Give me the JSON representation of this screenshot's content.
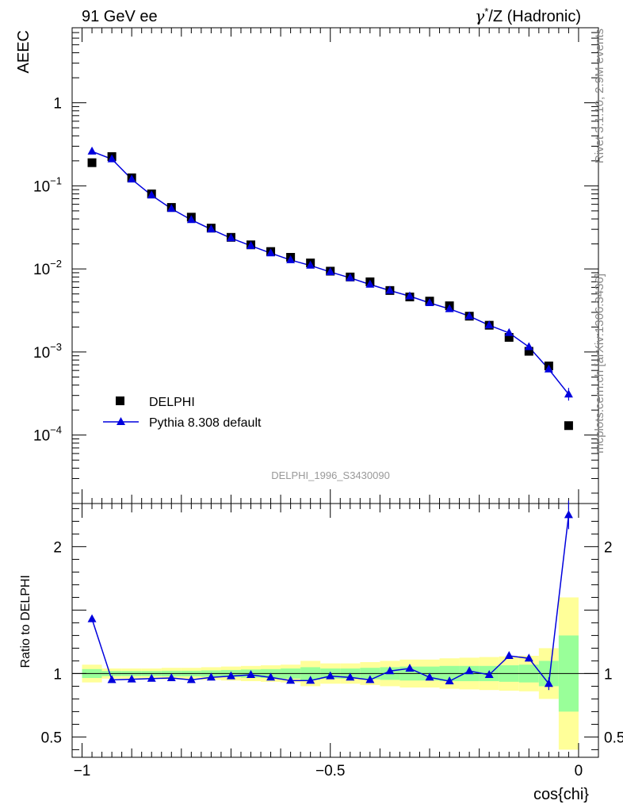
{
  "header": {
    "left": "91 GeV ee",
    "right_prefix": "γ",
    "right_sup": "*",
    "right_suffix": "/Z (Hadronic)"
  },
  "side_labels": {
    "version": "Rivet 3.1.10,  2.9M events",
    "source": "mcplots.cern.ch [arXiv:1306.3436]"
  },
  "watermark": "DELPHI_1996_S3430090",
  "colors": {
    "data": "#000000",
    "mc": "#0000dd",
    "band_inner": "#99ff99",
    "band_outer": "#ffff99"
  },
  "chart_data": [
    {
      "type": "scatter",
      "panel": "main",
      "ylabel": "AEEC",
      "yscale": "log",
      "ylim": [
        1.5e-05,
        8
      ],
      "xlim": [
        -1.02,
        0.04
      ],
      "y_ticks": [
        {
          "value": 1,
          "label": "1",
          "exp": ""
        },
        {
          "value": 0.1,
          "label": "10",
          "exp": "−1"
        },
        {
          "value": 0.01,
          "label": "10",
          "exp": "−2"
        },
        {
          "value": 0.001,
          "label": "10",
          "exp": "−3"
        },
        {
          "value": 0.0001,
          "label": "10",
          "exp": "−4"
        }
      ],
      "legend": {
        "position": "bottom-left"
      },
      "series": [
        {
          "name": "DELPHI",
          "marker": "square",
          "x": [
            -0.98,
            -0.94,
            -0.9,
            -0.86,
            -0.82,
            -0.78,
            -0.74,
            -0.7,
            -0.66,
            -0.62,
            -0.58,
            -0.54,
            -0.5,
            -0.46,
            -0.42,
            -0.38,
            -0.34,
            -0.3,
            -0.26,
            -0.22,
            -0.18,
            -0.14,
            -0.1,
            -0.06,
            -0.02
          ],
          "y": [
            0.19,
            0.225,
            0.125,
            0.08,
            0.055,
            0.042,
            0.031,
            0.024,
            0.0195,
            0.0162,
            0.0138,
            0.0118,
            0.0094,
            0.008,
            0.007,
            0.0055,
            0.0046,
            0.0041,
            0.0036,
            0.0027,
            0.0021,
            0.0015,
            0.00102,
            0.00068,
            0.00013
          ]
        },
        {
          "name": "Pythia 8.308 default",
          "marker": "triangle",
          "line": true,
          "x": [
            -0.98,
            -0.94,
            -0.9,
            -0.86,
            -0.82,
            -0.78,
            -0.74,
            -0.7,
            -0.66,
            -0.62,
            -0.58,
            -0.54,
            -0.5,
            -0.46,
            -0.42,
            -0.38,
            -0.34,
            -0.3,
            -0.26,
            -0.22,
            -0.18,
            -0.14,
            -0.1,
            -0.06,
            -0.02
          ],
          "y": [
            0.26,
            0.21,
            0.12,
            0.077,
            0.053,
            0.039,
            0.03,
            0.0235,
            0.019,
            0.0155,
            0.0128,
            0.011,
            0.0092,
            0.0078,
            0.0065,
            0.0055,
            0.0047,
            0.0039,
            0.0033,
            0.0027,
            0.0021,
            0.0017,
            0.00115,
            0.00062,
            0.00031
          ]
        }
      ]
    },
    {
      "type": "line",
      "panel": "ratio",
      "ylabel": "Ratio to DELPHI",
      "xlabel": "cos{chi}",
      "ylim": [
        0.34,
        2.34
      ],
      "xlim": [
        -1.02,
        0.04
      ],
      "y_ticks": [
        {
          "value": 0.5,
          "label": "0.5"
        },
        {
          "value": 1,
          "label": "1"
        },
        {
          "value": 2,
          "label": "2"
        }
      ],
      "x_ticks": [
        {
          "value": -1,
          "label": "−1"
        },
        {
          "value": -0.5,
          "label": "−0.5"
        },
        {
          "value": 0,
          "label": "0"
        }
      ],
      "reference_line": 1,
      "bands": {
        "x_edges": [
          -1.0,
          -0.96,
          -0.92,
          -0.88,
          -0.84,
          -0.8,
          -0.76,
          -0.72,
          -0.68,
          -0.64,
          -0.6,
          -0.56,
          -0.52,
          -0.48,
          -0.44,
          -0.4,
          -0.36,
          -0.32,
          -0.28,
          -0.24,
          -0.2,
          -0.16,
          -0.12,
          -0.08,
          -0.04,
          0.0
        ],
        "inner_half_width": [
          0.035,
          0.02,
          0.02,
          0.02,
          0.022,
          0.022,
          0.025,
          0.028,
          0.032,
          0.035,
          0.04,
          0.05,
          0.04,
          0.04,
          0.045,
          0.05,
          0.055,
          0.055,
          0.06,
          0.06,
          0.06,
          0.065,
          0.07,
          0.1,
          0.3
        ],
        "outer_half_width": [
          0.07,
          0.04,
          0.04,
          0.04,
          0.045,
          0.045,
          0.05,
          0.055,
          0.06,
          0.065,
          0.07,
          0.1,
          0.08,
          0.08,
          0.09,
          0.1,
          0.11,
          0.11,
          0.12,
          0.125,
          0.13,
          0.135,
          0.14,
          0.2,
          0.6
        ]
      },
      "series": [
        {
          "name": "Pythia 8.308 default",
          "x": [
            -0.98,
            -0.94,
            -0.9,
            -0.86,
            -0.82,
            -0.78,
            -0.74,
            -0.7,
            -0.66,
            -0.62,
            -0.58,
            -0.54,
            -0.5,
            -0.46,
            -0.42,
            -0.38,
            -0.34,
            -0.3,
            -0.26,
            -0.22,
            -0.18,
            -0.14,
            -0.1,
            -0.06,
            -0.02
          ],
          "y": [
            1.43,
            0.95,
            0.955,
            0.96,
            0.965,
            0.95,
            0.97,
            0.98,
            0.99,
            0.97,
            0.945,
            0.945,
            0.98,
            0.97,
            0.95,
            1.02,
            1.04,
            0.97,
            0.94,
            1.02,
            0.99,
            1.14,
            1.12,
            0.92,
            2.25
          ]
        }
      ]
    }
  ]
}
